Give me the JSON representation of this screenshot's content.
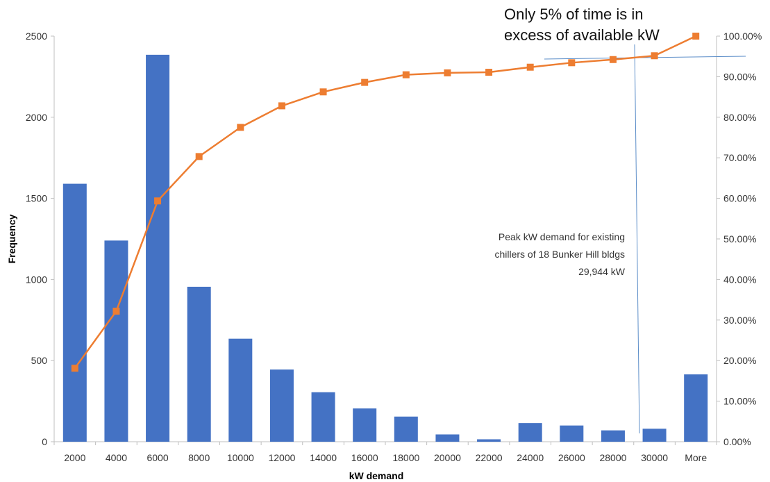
{
  "chart_data": {
    "type": "bar",
    "title": "",
    "xlabel": "kW demand",
    "ylabel": "Frequency",
    "categories": [
      "2000",
      "4000",
      "6000",
      "8000",
      "10000",
      "12000",
      "14000",
      "16000",
      "18000",
      "20000",
      "22000",
      "24000",
      "26000",
      "28000",
      "30000",
      "More"
    ],
    "series": [
      {
        "type": "bar",
        "axis": "left",
        "values": [
          1590,
          1240,
          2385,
          955,
          635,
          445,
          305,
          205,
          155,
          45,
          15,
          115,
          100,
          70,
          80,
          415
        ]
      },
      {
        "type": "line",
        "axis": "right",
        "values": [
          0.1812,
          0.3219,
          0.5937,
          0.7031,
          0.775,
          0.8281,
          0.8625,
          0.8859,
          0.9047,
          0.9094,
          0.9109,
          0.9234,
          0.9344,
          0.9422,
          0.9516,
          1.0
        ]
      }
    ],
    "ylim": [
      0,
      2500
    ],
    "yticks": [
      "0",
      "500",
      "1000",
      "1500",
      "2000",
      "2500"
    ],
    "y2lim": [
      0,
      1
    ],
    "y2ticks": [
      "0.00%",
      "10.00%",
      "20.00%",
      "30.00%",
      "40.00%",
      "50.00%",
      "60.00%",
      "70.00%",
      "80.00%",
      "90.00%",
      "100.00%"
    ],
    "grid": false,
    "legend": "none",
    "colors": {
      "bars": "#4472C4",
      "line": "#ED7D31",
      "annotation_line": "#5B8DC8",
      "axis": "#bfbfbf"
    },
    "annotations": {
      "peak_lines": [
        "Peak kW demand for existing",
        "chillers of 18 Bunker Hill bldgs",
        "29,944 kW"
      ],
      "time_lines": [
        "Only 5% of time is in",
        "excess of available kW"
      ]
    }
  }
}
